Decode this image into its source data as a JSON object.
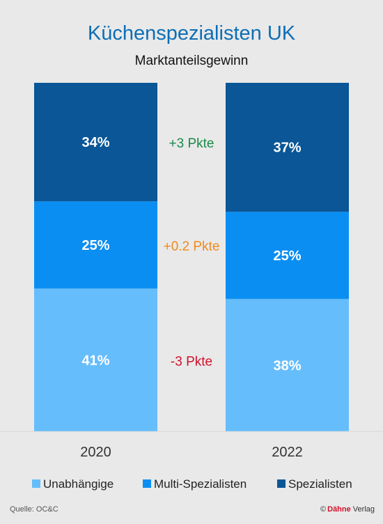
{
  "chart_data": {
    "type": "bar",
    "stacked": true,
    "title": "Küchenspezialisten UK",
    "subtitle": "Marktanteilsgewinn",
    "categories": [
      "2020",
      "2022"
    ],
    "unit": "%",
    "ylim": [
      0,
      100
    ],
    "series": [
      {
        "name": "Unabhängige",
        "values": [
          41,
          38
        ],
        "color": "#66bdfc",
        "labels": [
          "41%",
          "38%"
        ]
      },
      {
        "name": "Multi-Spezialisten",
        "values": [
          25,
          25
        ],
        "color": "#0a8ef2",
        "labels": [
          "25%",
          "25%"
        ]
      },
      {
        "name": "Spezialisten",
        "values": [
          34,
          37
        ],
        "color": "#0a5696",
        "labels": [
          "34%",
          "37%"
        ]
      }
    ],
    "annotations": [
      {
        "series": "Spezialisten",
        "text": "+3 Pkte",
        "color": "#1a8a4a"
      },
      {
        "series": "Multi-Spezialisten",
        "text": "+0.2 Pkte",
        "color": "#f08a1c"
      },
      {
        "series": "Unabhängige",
        "text": "-3 Pkte",
        "color": "#d0112b"
      }
    ],
    "legend_position": "bottom",
    "grid": false
  },
  "footer": {
    "source": "Quelle: OC&C",
    "copyright": "©",
    "publisher_brand": "Dähne",
    "publisher_suffix": " Verlag",
    "brand_color": "#d0112b"
  }
}
